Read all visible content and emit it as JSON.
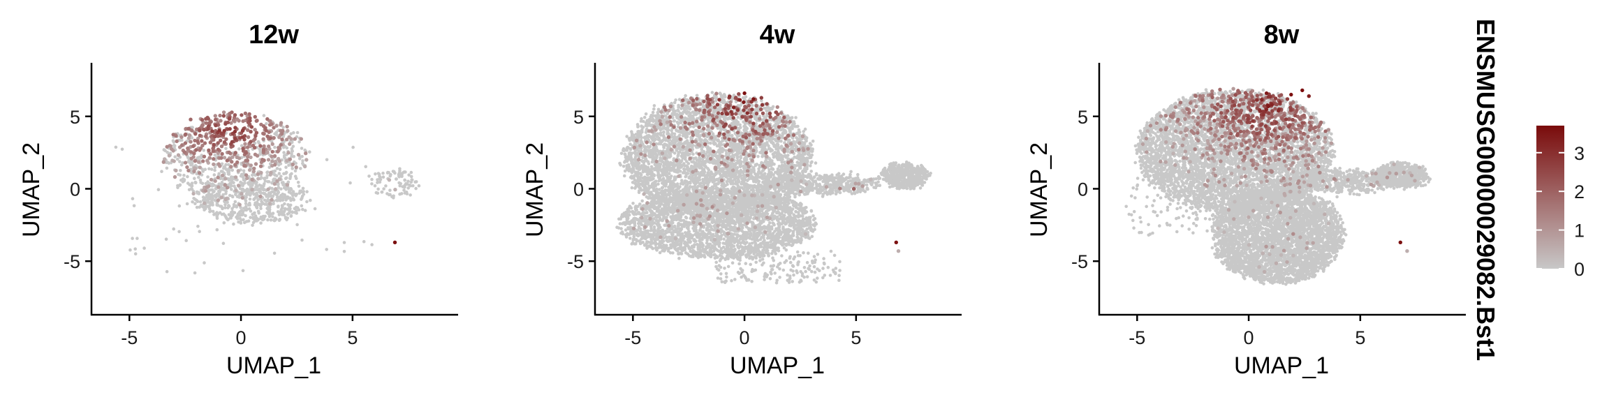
{
  "chart_data": [
    {
      "type": "scatter",
      "title": "12w",
      "xlabel": "UMAP_1",
      "ylabel": "UMAP_2",
      "xlim": [
        -6.7,
        9.7
      ],
      "ylim": [
        -8.7,
        8.7
      ],
      "xticks": [
        -5,
        0,
        5
      ],
      "yticks": [
        5,
        0,
        -5
      ],
      "grid": false,
      "clusters": [
        {
          "name": "main-body",
          "cx": -0.3,
          "cy": 2.2,
          "rx": 3.2,
          "ry": 3.0,
          "n": 900,
          "expr_cx": -0.6,
          "expr_cy": 4.0,
          "expr_frac": 0.55,
          "max_expr": 3.3
        },
        {
          "name": "lower-body",
          "cx": 0.5,
          "cy": -0.8,
          "rx": 2.6,
          "ry": 1.6,
          "n": 500,
          "expr_cx": 0.0,
          "expr_cy": 0.0,
          "expr_frac": 0.05,
          "max_expr": 1.5
        },
        {
          "name": "right-island",
          "cx": 6.9,
          "cy": 0.4,
          "rx": 1.0,
          "ry": 1.0,
          "n": 90,
          "expr_cx": 7.0,
          "expr_cy": 0.5,
          "expr_frac": 0.02,
          "max_expr": 1.0
        },
        {
          "name": "scatter-outliers",
          "cx": 0.0,
          "cy": -1.0,
          "rx": 6.0,
          "ry": 5.5,
          "n": 60,
          "expr_cx": 0,
          "expr_cy": 0,
          "expr_frac": 0.0,
          "max_expr": 0.0
        }
      ],
      "hot_points": [
        [
          6.9,
          -3.7,
          3.6
        ]
      ]
    },
    {
      "type": "scatter",
      "title": "4w",
      "xlabel": "UMAP_1",
      "ylabel": "UMAP_2",
      "xlim": [
        -6.7,
        9.7
      ],
      "ylim": [
        -8.7,
        8.7
      ],
      "xticks": [
        -5,
        0,
        5
      ],
      "yticks": [
        5,
        0,
        -5
      ],
      "grid": false,
      "clusters": [
        {
          "name": "upper-body",
          "cx": -1.2,
          "cy": 2.2,
          "rx": 4.2,
          "ry": 4.3,
          "n": 4200,
          "expr_cx": -0.2,
          "expr_cy": 5.8,
          "expr_frac": 0.12,
          "max_expr": 3.6
        },
        {
          "name": "lower-body",
          "cx": -1.2,
          "cy": -2.4,
          "rx": 4.4,
          "ry": 2.4,
          "n": 2600,
          "expr_cx": -2.0,
          "expr_cy": -1.5,
          "expr_frac": 0.02,
          "max_expr": 1.5
        },
        {
          "name": "bridge",
          "cx": 3.4,
          "cy": 0.3,
          "rx": 2.6,
          "ry": 0.7,
          "n": 500,
          "expr_cx": 4.0,
          "expr_cy": 0.0,
          "expr_frac": 0.02,
          "max_expr": 1.5
        },
        {
          "name": "right-island",
          "cx": 7.2,
          "cy": 0.9,
          "rx": 1.0,
          "ry": 0.8,
          "n": 500,
          "expr_cx": 7.2,
          "expr_cy": 0.9,
          "expr_frac": 0.0,
          "max_expr": 0.0
        },
        {
          "name": "bottom-scatter",
          "cx": 1.5,
          "cy": -5.4,
          "rx": 2.8,
          "ry": 1.1,
          "n": 180,
          "expr_cx": 0,
          "expr_cy": 0,
          "expr_frac": 0.0,
          "max_expr": 0.0
        }
      ],
      "hot_points": [
        [
          6.8,
          -3.7,
          3.6
        ],
        [
          6.9,
          -4.3,
          0.5
        ],
        [
          4.9,
          0.0,
          2.0
        ],
        [
          0.0,
          6.6,
          3.6
        ],
        [
          0.4,
          6.2,
          3.5
        ]
      ]
    },
    {
      "type": "scatter",
      "title": "8w",
      "xlabel": "UMAP_1",
      "ylabel": "UMAP_2",
      "xlim": [
        -6.7,
        9.7
      ],
      "ylim": [
        -8.7,
        8.7
      ],
      "xticks": [
        -5,
        0,
        5
      ],
      "yticks": [
        5,
        0,
        -5
      ],
      "grid": false,
      "clusters": [
        {
          "name": "upper-body",
          "cx": -0.6,
          "cy": 2.6,
          "rx": 4.4,
          "ry": 4.2,
          "n": 5000,
          "expr_cx": 0.8,
          "expr_cy": 5.6,
          "expr_frac": 0.2,
          "max_expr": 3.6
        },
        {
          "name": "lower-body",
          "cx": 1.3,
          "cy": -3.2,
          "rx": 2.9,
          "ry": 3.3,
          "n": 3600,
          "expr_cx": 1.3,
          "expr_cy": -3.0,
          "expr_frac": 0.01,
          "max_expr": 1.5
        },
        {
          "name": "bridge",
          "cx": 4.0,
          "cy": 0.5,
          "rx": 2.4,
          "ry": 0.8,
          "n": 500,
          "expr_cx": 4.0,
          "expr_cy": 0.5,
          "expr_frac": 0.03,
          "max_expr": 2.0
        },
        {
          "name": "right-island",
          "cx": 6.8,
          "cy": 0.9,
          "rx": 1.2,
          "ry": 0.8,
          "n": 600,
          "expr_cx": 6.5,
          "expr_cy": 0.9,
          "expr_frac": 0.02,
          "max_expr": 1.5
        },
        {
          "name": "scatter-outliers",
          "cx": -3.0,
          "cy": -1.2,
          "rx": 2.5,
          "ry": 2.0,
          "n": 120,
          "expr_cx": 0,
          "expr_cy": 0,
          "expr_frac": 0.0,
          "max_expr": 0.0
        }
      ],
      "hot_points": [
        [
          6.8,
          -3.7,
          3.6
        ],
        [
          7.1,
          -4.3,
          0.5
        ],
        [
          2.4,
          6.8,
          3.7
        ],
        [
          1.9,
          6.5,
          3.6
        ],
        [
          0.8,
          6.6,
          3.4
        ],
        [
          2.7,
          6.4,
          3.3
        ]
      ]
    }
  ],
  "legend": {
    "title": "ENSMUSG00000029082.Bst1",
    "ticks": [
      "3",
      "2",
      "1",
      "0"
    ],
    "tick_values": [
      3,
      2,
      1,
      0
    ],
    "min": 0,
    "max": 3.7,
    "color_low": "#c8c8c8",
    "color_high": "#7a0b0b",
    "placement": "right"
  }
}
